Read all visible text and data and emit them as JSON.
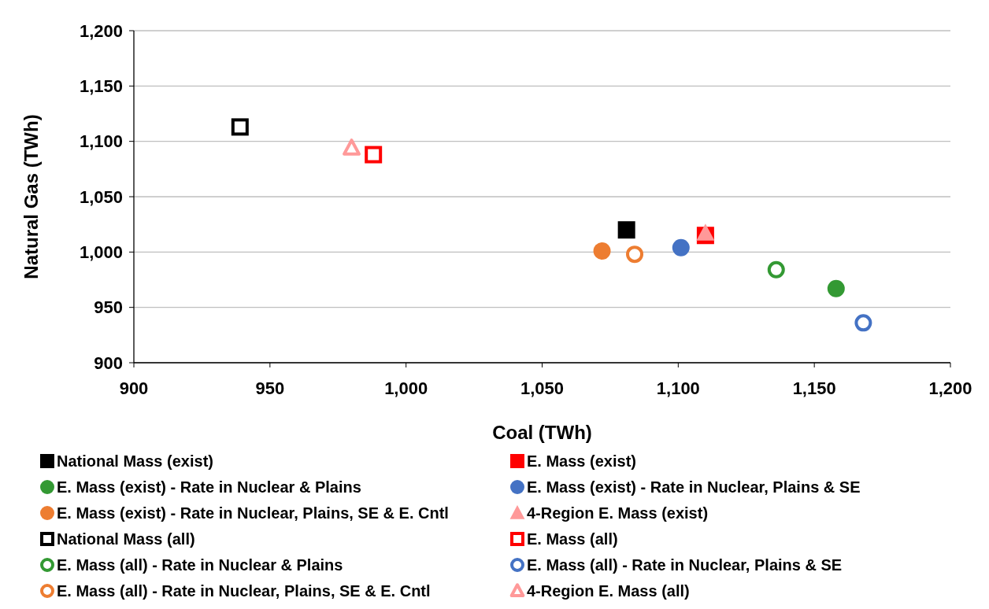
{
  "chart_data": {
    "type": "scatter",
    "xlabel": "Coal (TWh)",
    "ylabel": "Natural Gas (TWh)",
    "xlim": [
      900,
      1200
    ],
    "xticks": [
      {
        "value": 900,
        "label": "900"
      },
      {
        "value": 950,
        "label": "950"
      },
      {
        "value": 1000,
        "label": "1,000"
      },
      {
        "value": 1050,
        "label": "1,050"
      },
      {
        "value": 1100,
        "label": "1,100"
      },
      {
        "value": 1150,
        "label": "1,150"
      },
      {
        "value": 1200,
        "label": "1,200"
      }
    ],
    "ylim": [
      900,
      1200
    ],
    "yticks": [
      {
        "value": 900,
        "label": "900"
      },
      {
        "value": 950,
        "label": "950"
      },
      {
        "value": 1000,
        "label": "1,000"
      },
      {
        "value": 1050,
        "label": "1,050"
      },
      {
        "value": 1100,
        "label": "1,100"
      },
      {
        "value": 1150,
        "label": "1,150"
      },
      {
        "value": 1200,
        "label": "1,200"
      }
    ],
    "grid": "y",
    "legend": "bottom",
    "series": [
      {
        "name": "National Mass (exist)",
        "color": "#000000",
        "marker": "square",
        "x": [
          1081
        ],
        "values": [
          1020
        ]
      },
      {
        "name": "E. Mass (exist)",
        "color": "#ff0000",
        "marker": "square",
        "x": [
          1110
        ],
        "values": [
          1015
        ]
      },
      {
        "name": "E. Mass (exist) - Rate in Nuclear & Plains",
        "color": "#339933",
        "marker": "circle",
        "x": [
          1158
        ],
        "values": [
          967
        ]
      },
      {
        "name": "E. Mass (exist) - Rate in Nuclear, Plains & SE",
        "color": "#4472c4",
        "marker": "circle",
        "x": [
          1101
        ],
        "values": [
          1004
        ]
      },
      {
        "name": "E. Mass (exist) - Rate in Nuclear, Plains, SE & E. Cntl",
        "color": "#ed7d31",
        "marker": "circle",
        "x": [
          1072
        ],
        "values": [
          1001
        ]
      },
      {
        "name": "4-Region E. Mass (exist)",
        "color": "#ff9999",
        "marker": "triangle",
        "x": [
          1110
        ],
        "values": [
          1017
        ]
      },
      {
        "name": "National Mass (all)",
        "color": "#000000",
        "marker": "square-open",
        "x": [
          939
        ],
        "values": [
          1113
        ]
      },
      {
        "name": "E. Mass (all)",
        "color": "#ff0000",
        "marker": "square-open",
        "x": [
          988
        ],
        "values": [
          1088
        ]
      },
      {
        "name": "E. Mass (all) - Rate in Nuclear & Plains",
        "color": "#339933",
        "marker": "circle-open",
        "x": [
          1136
        ],
        "values": [
          984
        ]
      },
      {
        "name": "E. Mass (all) - Rate in Nuclear, Plains & SE",
        "color": "#4472c4",
        "marker": "circle-open",
        "x": [
          1168
        ],
        "values": [
          936
        ]
      },
      {
        "name": "E. Mass (all) - Rate in Nuclear, Plains, SE & E. Cntl",
        "color": "#ed7d31",
        "marker": "circle-open",
        "x": [
          1084
        ],
        "values": [
          998
        ]
      },
      {
        "name": "4-Region E. Mass (all)",
        "color": "#ff9999",
        "marker": "triangle-open",
        "x": [
          980
        ],
        "values": [
          1094
        ]
      }
    ]
  }
}
